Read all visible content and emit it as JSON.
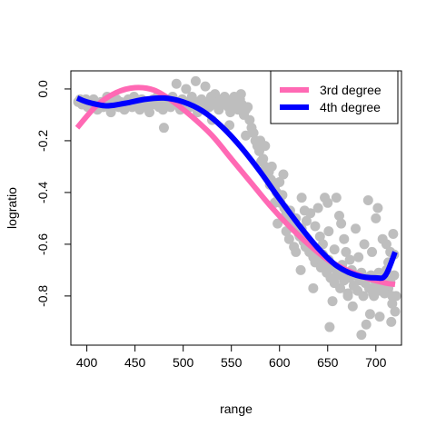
{
  "chart_data": {
    "type": "scatter",
    "xlabel": "range",
    "ylabel": "logratio",
    "xlim": [
      383.4,
      726.6
    ],
    "ylim": [
      -0.99,
      0.07
    ],
    "x_ticks": [
      400,
      450,
      500,
      550,
      600,
      650,
      700
    ],
    "y_ticks": [
      0.0,
      -0.2,
      -0.4,
      -0.6,
      -0.8
    ],
    "y_tick_labels": [
      "0.0",
      "-0.2",
      "-0.4",
      "-0.6",
      "-0.8"
    ],
    "grid": false,
    "legend_position": "top-right",
    "colors": {
      "points": "#bebebe",
      "series_3rd": "#ff69b4",
      "series_4th": "#0000ff"
    },
    "points": [
      [
        391,
        -0.05
      ],
      [
        393,
        -0.04
      ],
      [
        395,
        -0.06
      ],
      [
        397,
        -0.05
      ],
      [
        399,
        -0.04
      ],
      [
        401,
        -0.07
      ],
      [
        403,
        -0.05
      ],
      [
        405,
        -0.06
      ],
      [
        407,
        -0.04
      ],
      [
        409,
        -0.05
      ],
      [
        411,
        -0.08
      ],
      [
        413,
        -0.06
      ],
      [
        415,
        -0.05
      ],
      [
        417,
        -0.07
      ],
      [
        419,
        -0.06
      ],
      [
        421,
        -0.03
      ],
      [
        423,
        -0.07
      ],
      [
        425,
        -0.09
      ],
      [
        427,
        -0.05
      ],
      [
        429,
        -0.06
      ],
      [
        431,
        -0.04
      ],
      [
        433,
        -0.07
      ],
      [
        435,
        -0.05
      ],
      [
        437,
        -0.06
      ],
      [
        439,
        -0.08
      ],
      [
        441,
        -0.05
      ],
      [
        443,
        -0.04
      ],
      [
        445,
        -0.06
      ],
      [
        447,
        -0.07
      ],
      [
        449,
        -0.03
      ],
      [
        451,
        -0.05
      ],
      [
        453,
        -0.06
      ],
      [
        455,
        -0.08
      ],
      [
        457,
        -0.04
      ],
      [
        459,
        -0.06
      ],
      [
        461,
        -0.05
      ],
      [
        463,
        -0.07
      ],
      [
        465,
        -0.09
      ],
      [
        467,
        -0.05
      ],
      [
        469,
        -0.04
      ],
      [
        471,
        -0.06
      ],
      [
        473,
        -0.03
      ],
      [
        475,
        -0.07
      ],
      [
        477,
        -0.05
      ],
      [
        479,
        -0.08
      ],
      [
        481,
        -0.04
      ],
      [
        483,
        -0.06
      ],
      [
        485,
        -0.05
      ],
      [
        487,
        -0.07
      ],
      [
        489,
        -0.03
      ],
      [
        491,
        -0.06
      ],
      [
        493,
        0.02
      ],
      [
        495,
        -0.05
      ],
      [
        497,
        -0.08
      ],
      [
        499,
        -0.04
      ],
      [
        501,
        -0.06
      ],
      [
        503,
        0.0
      ],
      [
        505,
        -0.05
      ],
      [
        507,
        -0.07
      ],
      [
        509,
        -0.03
      ],
      [
        511,
        -0.06
      ],
      [
        513,
        0.03
      ],
      [
        515,
        -0.05
      ],
      [
        517,
        -0.08
      ],
      [
        519,
        -0.04
      ],
      [
        521,
        -0.06
      ],
      [
        523,
        0.01
      ],
      [
        525,
        -0.05
      ],
      [
        527,
        -0.07
      ],
      [
        529,
        -0.03
      ],
      [
        531,
        -0.06
      ],
      [
        533,
        -0.02
      ],
      [
        535,
        -0.05
      ],
      [
        537,
        -0.08
      ],
      [
        539,
        -0.04
      ],
      [
        541,
        -0.06
      ],
      [
        543,
        -0.03
      ],
      [
        545,
        -0.05
      ],
      [
        547,
        -0.07
      ],
      [
        549,
        -0.09
      ],
      [
        551,
        -0.06
      ],
      [
        553,
        -0.03
      ],
      [
        555,
        -0.05
      ],
      [
        557,
        -0.08
      ],
      [
        559,
        -0.04
      ],
      [
        561,
        -0.06
      ],
      [
        563,
        -0.1
      ],
      [
        565,
        -0.08
      ],
      [
        567,
        -0.07
      ],
      [
        569,
        -0.12
      ],
      [
        571,
        -0.15
      ],
      [
        573,
        -0.17
      ],
      [
        575,
        -0.2
      ],
      [
        577,
        -0.22
      ],
      [
        579,
        -0.24
      ],
      [
        581,
        -0.28
      ],
      [
        583,
        -0.27
      ],
      [
        585,
        -0.3
      ],
      [
        587,
        -0.33
      ],
      [
        589,
        -0.32
      ],
      [
        591,
        -0.35
      ],
      [
        593,
        -0.36
      ],
      [
        595,
        -0.38
      ],
      [
        597,
        -0.4
      ],
      [
        599,
        -0.42
      ],
      [
        601,
        -0.44
      ],
      [
        603,
        -0.41
      ],
      [
        605,
        -0.46
      ],
      [
        607,
        -0.48
      ],
      [
        609,
        -0.5
      ],
      [
        611,
        -0.47
      ],
      [
        613,
        -0.52
      ],
      [
        615,
        -0.53
      ],
      [
        617,
        -0.5
      ],
      [
        619,
        -0.55
      ],
      [
        621,
        -0.57
      ],
      [
        623,
        -0.54
      ],
      [
        625,
        -0.59
      ],
      [
        627,
        -0.61
      ],
      [
        629,
        -0.58
      ],
      [
        631,
        -0.63
      ],
      [
        633,
        -0.6
      ],
      [
        635,
        -0.65
      ],
      [
        637,
        -0.67
      ],
      [
        639,
        -0.62
      ],
      [
        641,
        -0.66
      ],
      [
        643,
        -0.69
      ],
      [
        645,
        -0.64
      ],
      [
        647,
        -0.68
      ],
      [
        649,
        -0.71
      ],
      [
        651,
        -0.66
      ],
      [
        653,
        -0.73
      ],
      [
        655,
        -0.69
      ],
      [
        657,
        -0.75
      ],
      [
        659,
        -0.7
      ],
      [
        661,
        -0.72
      ],
      [
        663,
        -0.77
      ],
      [
        665,
        -0.68
      ],
      [
        667,
        -0.74
      ],
      [
        669,
        -0.71
      ],
      [
        671,
        -0.79
      ],
      [
        673,
        -0.73
      ],
      [
        675,
        -0.7
      ],
      [
        677,
        -0.76
      ],
      [
        679,
        -0.72
      ],
      [
        681,
        -0.78
      ],
      [
        683,
        -0.74
      ],
      [
        685,
        -0.71
      ],
      [
        687,
        -0.8
      ],
      [
        689,
        -0.75
      ],
      [
        691,
        -0.73
      ],
      [
        693,
        -0.77
      ],
      [
        695,
        -0.72
      ],
      [
        697,
        -0.79
      ],
      [
        699,
        -0.74
      ],
      [
        701,
        -0.76
      ],
      [
        703,
        -0.71
      ],
      [
        705,
        -0.78
      ],
      [
        707,
        -0.73
      ],
      [
        709,
        -0.75
      ],
      [
        711,
        -0.7
      ],
      [
        713,
        -0.77
      ],
      [
        715,
        -0.74
      ],
      [
        717,
        -0.8
      ],
      [
        719,
        -0.72
      ],
      [
        480,
        -0.15
      ],
      [
        515,
        -0.09
      ],
      [
        530,
        -0.12
      ],
      [
        548,
        -0.14
      ],
      [
        560,
        -0.02
      ],
      [
        565,
        -0.18
      ],
      [
        580,
        -0.2
      ],
      [
        585,
        -0.22
      ],
      [
        590,
        -0.37
      ],
      [
        592,
        -0.3
      ],
      [
        595,
        -0.44
      ],
      [
        598,
        -0.52
      ],
      [
        600,
        -0.36
      ],
      [
        604,
        -0.33
      ],
      [
        607,
        -0.55
      ],
      [
        610,
        -0.58
      ],
      [
        612,
        -0.49
      ],
      [
        615,
        -0.61
      ],
      [
        617,
        -0.63
      ],
      [
        620,
        -0.56
      ],
      [
        622,
        -0.7
      ],
      [
        623,
        -0.42
      ],
      [
        626,
        -0.47
      ],
      [
        628,
        -0.51
      ],
      [
        630,
        -0.59
      ],
      [
        632,
        -0.48
      ],
      [
        635,
        -0.77
      ],
      [
        637,
        -0.53
      ],
      [
        640,
        -0.46
      ],
      [
        642,
        -0.57
      ],
      [
        645,
        -0.6
      ],
      [
        647,
        -0.42
      ],
      [
        650,
        -0.44
      ],
      [
        651,
        -0.55
      ],
      [
        652,
        -0.92
      ],
      [
        655,
        -0.82
      ],
      [
        657,
        -0.62
      ],
      [
        659,
        -0.42
      ],
      [
        662,
        -0.49
      ],
      [
        664,
        -0.52
      ],
      [
        667,
        -0.58
      ],
      [
        669,
        -0.63
      ],
      [
        671,
        -0.8
      ],
      [
        673,
        -0.66
      ],
      [
        676,
        -0.84
      ],
      [
        679,
        -0.54
      ],
      [
        682,
        -0.65
      ],
      [
        685,
        -0.95
      ],
      [
        688,
        -0.6
      ],
      [
        690,
        -0.91
      ],
      [
        692,
        -0.43
      ],
      [
        694,
        -0.87
      ],
      [
        696,
        -0.63
      ],
      [
        698,
        -0.8
      ],
      [
        700,
        -0.5
      ],
      [
        702,
        -0.46
      ],
      [
        704,
        -0.88
      ],
      [
        707,
        -0.58
      ],
      [
        709,
        -0.79
      ],
      [
        711,
        -0.6
      ],
      [
        713,
        -0.67
      ],
      [
        715,
        -0.63
      ],
      [
        717,
        -0.83
      ],
      [
        718,
        -0.56
      ],
      [
        719,
        -0.64
      ],
      [
        720,
        -0.86
      ],
      [
        721,
        -0.8
      ],
      [
        716,
        -0.9
      ]
    ],
    "series": [
      {
        "name": "3rd degree",
        "color": "#ff69b4",
        "x": [
          390,
          410,
          430,
          450,
          470,
          490,
          510,
          530,
          550,
          570,
          590,
          610,
          630,
          650,
          670,
          690,
          710,
          720
        ],
        "y": [
          -0.15,
          -0.065,
          -0.015,
          0.005,
          -0.005,
          -0.05,
          -0.11,
          -0.18,
          -0.27,
          -0.36,
          -0.45,
          -0.53,
          -0.6,
          -0.66,
          -0.7,
          -0.73,
          -0.75,
          -0.755
        ]
      },
      {
        "name": "4th degree",
        "color": "#0000ff",
        "x": [
          390,
          400,
          420,
          440,
          460,
          480,
          500,
          520,
          540,
          560,
          580,
          600,
          620,
          640,
          660,
          680,
          700,
          710,
          720
        ],
        "y": [
          -0.035,
          -0.05,
          -0.065,
          -0.055,
          -0.04,
          -0.035,
          -0.05,
          -0.085,
          -0.145,
          -0.225,
          -0.32,
          -0.425,
          -0.525,
          -0.615,
          -0.685,
          -0.72,
          -0.73,
          -0.72,
          -0.63
        ]
      }
    ]
  }
}
